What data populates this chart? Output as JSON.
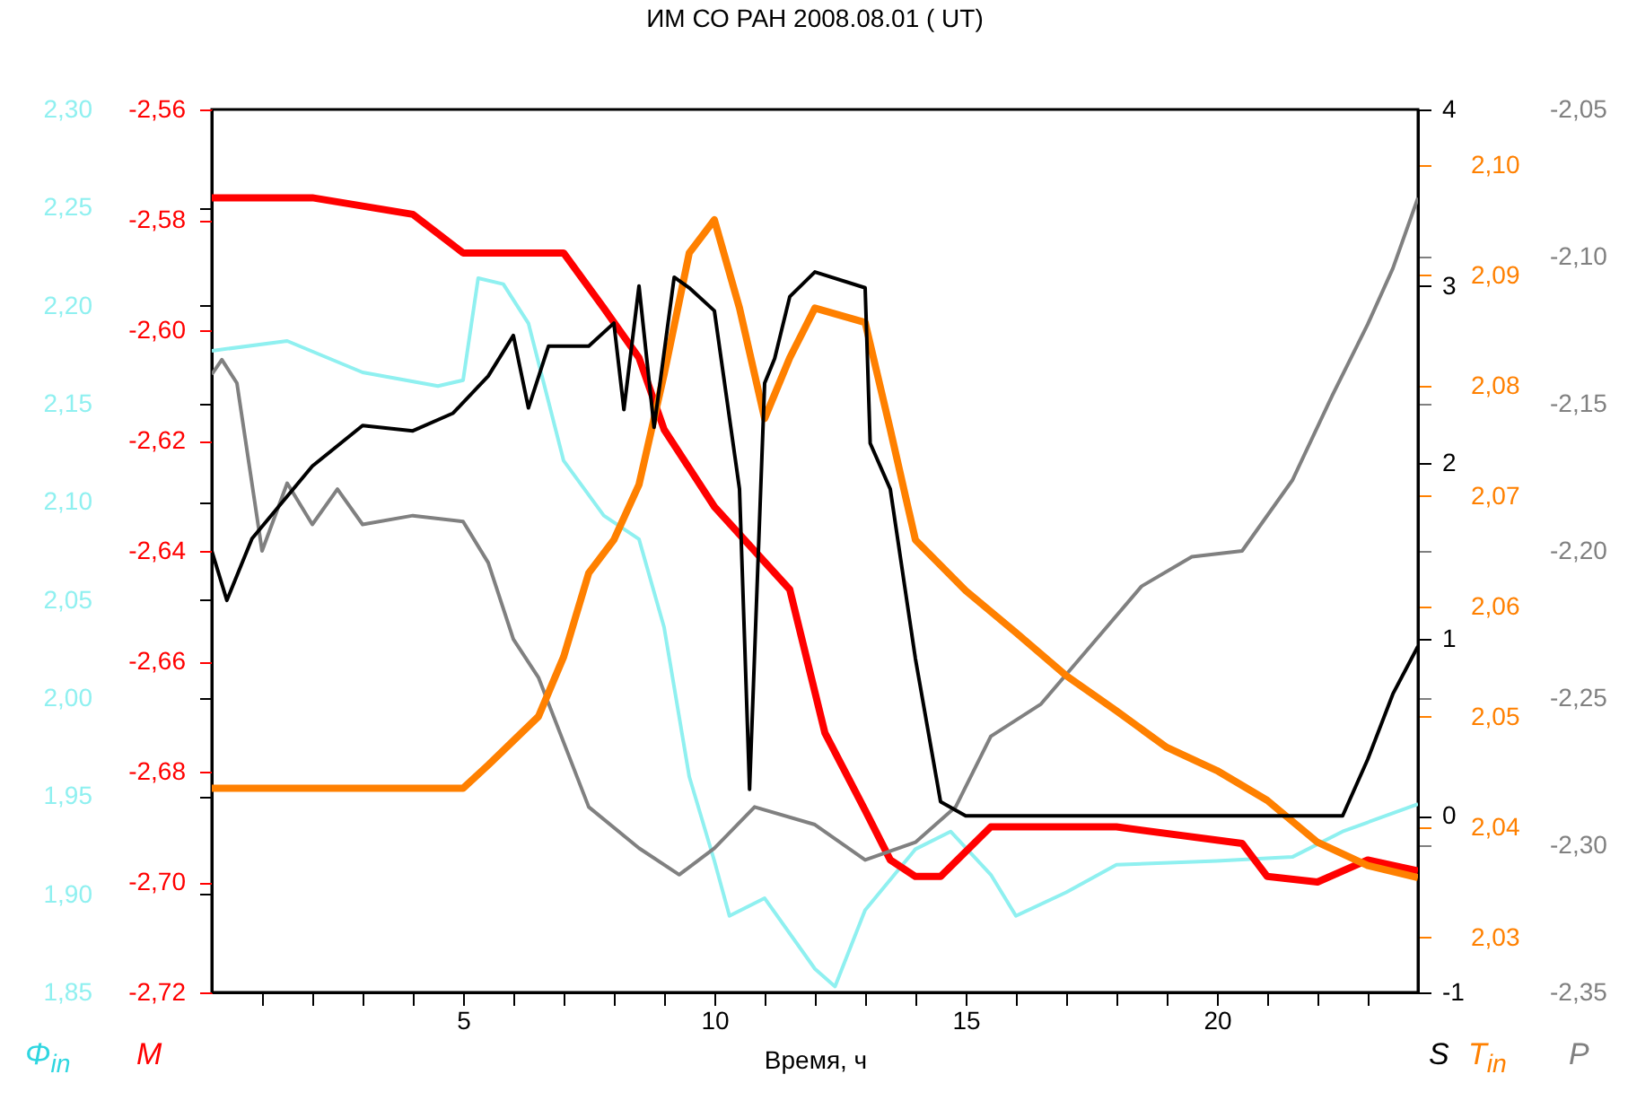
{
  "chart_data": [
    {
      "type": "line",
      "title": "ИМ СО РАН   2008.08.01   ( UT)",
      "xlabel": "Время, ч",
      "ylabel": "Φ$_{in}$",
      "y2label": "M",
      "xlim": [
        0,
        24
      ],
      "xticks": [
        {
          "value": 1,
          "label": null
        },
        {
          "value": 2,
          "label": null
        },
        {
          "value": 3,
          "label": null
        },
        {
          "value": 4,
          "label": null
        },
        5,
        {
          "value": 6,
          "label": null
        },
        {
          "value": 7,
          "label": null
        },
        {
          "value": 8,
          "label": null
        },
        {
          "value": 9,
          "label": null
        },
        10,
        {
          "value": 11,
          "label": null
        },
        {
          "value": 12,
          "label": null
        },
        {
          "value": 13,
          "label": null
        },
        {
          "value": 14,
          "label": null
        },
        15,
        {
          "value": 16,
          "label": null
        },
        {
          "value": 17,
          "label": null
        },
        {
          "value": 18,
          "label": null
        },
        {
          "value": 19,
          "label": null
        },
        20,
        {
          "value": 21,
          "label": null
        },
        {
          "value": 22,
          "label": null
        },
        {
          "value": 23,
          "label": null
        }
      ],
      "ylim": [
        1.85,
        2.3
      ],
      "yticks": [
        {
          "value": 1.85,
          "label": "1,85"
        },
        {
          "value": 1.9,
          "label": "1,90"
        },
        {
          "value": 1.95,
          "label": "1,95"
        },
        {
          "value": 2,
          "label": "2,00"
        },
        {
          "value": 2.05,
          "label": "2,05"
        },
        {
          "value": 2.1,
          "label": "2,10"
        },
        {
          "value": 2.15,
          "label": "2,15"
        },
        {
          "value": 2.2,
          "label": "2,20"
        },
        {
          "value": 2.25,
          "label": "2,25"
        },
        {
          "value": 2.3,
          "label": "2,30"
        }
      ],
      "y2lim": [
        -2.72,
        -2.56
      ],
      "y2ticks": [
        {
          "value": -2.72,
          "label": "-2,72"
        },
        {
          "value": -2.7,
          "label": "-2,70"
        },
        {
          "value": -2.68,
          "label": "-2,68"
        },
        {
          "value": -2.66,
          "label": "-2,66"
        },
        {
          "value": -2.64,
          "label": "-2,64"
        },
        {
          "value": -2.62,
          "label": "-2,62"
        },
        {
          "value": -2.6,
          "label": "-2,60"
        },
        {
          "value": -2.58,
          "label": "-2,58"
        },
        {
          "value": -2.56,
          "label": "-2,56"
        }
      ],
      "grid": false,
      "series": [
        {
          "axis": "y",
          "color": "#8ff0f0",
          "x": [
            0,
            1.5,
            3,
            4.5,
            5,
            5.3,
            5.8,
            6.3,
            7,
            7.8,
            8.5,
            9,
            9.5,
            10,
            10.3,
            11,
            12,
            12.4,
            13,
            14,
            14.7,
            15.5,
            16,
            17,
            18,
            20,
            21.5,
            22.5,
            24
          ],
          "values": [
            2.177,
            2.182,
            2.166,
            2.159,
            2.162,
            2.214,
            2.211,
            2.191,
            2.121,
            2.093,
            2.081,
            2.036,
            1.96,
            1.917,
            1.889,
            1.898,
            1.862,
            1.853,
            1.892,
            1.923,
            1.932,
            1.91,
            1.889,
            1.901,
            1.915,
            1.917,
            1.919,
            1.932,
            1.946
          ]
        },
        {
          "axis": "y2",
          "color": "#ff0000",
          "x": [
            0,
            2,
            4,
            5,
            7,
            7.8,
            8.5,
            9,
            10,
            10.8,
            11.5,
            12.2,
            13,
            13.5,
            14,
            14.5,
            15.5,
            18,
            20.5,
            21,
            22,
            23,
            24
          ],
          "values": [
            -2.576,
            -2.576,
            -2.579,
            -2.586,
            -2.586,
            -2.596,
            -2.605,
            -2.618,
            -2.632,
            -2.64,
            -2.647,
            -2.673,
            -2.687,
            -2.696,
            -2.699,
            -2.699,
            -2.69,
            -2.69,
            -2.693,
            -2.699,
            -2.7,
            -2.696,
            -2.698
          ]
        }
      ]
    },
    {
      "type": "line",
      "ylabel": "S",
      "y2label": "T$_{in}$",
      "y3label": "P",
      "tick_labels": "y",
      "xlim": [
        0,
        24
      ],
      "ylim": [
        -1,
        4
      ],
      "yticks": [
        -1,
        0,
        1,
        2,
        3,
        4
      ],
      "y2lim": [
        2.025,
        2.105
      ],
      "y2ticks": [
        {
          "value": 2.03,
          "label": "2,03"
        },
        {
          "value": 2.04,
          "label": "2,04"
        },
        {
          "value": 2.05,
          "label": "2,05"
        },
        {
          "value": 2.06,
          "label": "2,06"
        },
        {
          "value": 2.07,
          "label": "2,07"
        },
        {
          "value": 2.08,
          "label": "2,08"
        },
        {
          "value": 2.09,
          "label": "2,09"
        },
        {
          "value": 2.1,
          "label": "2,10"
        }
      ],
      "y3lim": [
        -2.35,
        -2.05
      ],
      "y3ticks": [
        {
          "value": -2.35,
          "label": "-2,35"
        },
        {
          "value": -2.3,
          "label": "-2,30"
        },
        {
          "value": -2.25,
          "label": "-2,25"
        },
        {
          "value": -2.2,
          "label": "-2,20"
        },
        {
          "value": -2.15,
          "label": "-2,15"
        },
        {
          "value": -2.1,
          "label": "-2,10"
        },
        {
          "value": -2.05,
          "label": "-2,05"
        }
      ],
      "grid": false,
      "series": [
        {
          "axis": "y3",
          "color": "#808080",
          "x": [
            0,
            0.2,
            0.5,
            1,
            1.5,
            2,
            2.5,
            3,
            4,
            5,
            5.5,
            6,
            6.5,
            7.5,
            8.5,
            9.3,
            10,
            10.8,
            12,
            13,
            14,
            14.8,
            15.5,
            16.5,
            17.5,
            18.5,
            19.5,
            20.5,
            21.5,
            22.3,
            23,
            23.5,
            24
          ],
          "values": [
            -2.14,
            -2.135,
            -2.143,
            -2.2,
            -2.177,
            -2.191,
            -2.179,
            -2.191,
            -2.188,
            -2.19,
            -2.204,
            -2.23,
            -2.243,
            -2.287,
            -2.301,
            -2.31,
            -2.301,
            -2.287,
            -2.293,
            -2.305,
            -2.299,
            -2.287,
            -2.263,
            -2.252,
            -2.232,
            -2.212,
            -2.202,
            -2.2,
            -2.176,
            -2.147,
            -2.123,
            -2.104,
            -2.08
          ]
        },
        {
          "axis": "y2",
          "color": "#ff8000",
          "x": [
            0,
            5,
            5.5,
            6.5,
            7,
            7.5,
            8,
            8.5,
            9,
            9.5,
            10,
            10.5,
            11,
            11.5,
            12,
            13,
            13.5,
            14,
            15,
            16,
            17,
            18,
            19,
            20,
            21,
            22,
            23,
            24
          ],
          "values": [
            2.0435,
            2.0435,
            2.0456,
            2.05,
            2.0554,
            2.063,
            2.066,
            2.071,
            2.081,
            2.092,
            2.095,
            2.087,
            2.077,
            2.0825,
            2.087,
            2.0857,
            2.076,
            2.066,
            2.0614,
            2.0576,
            2.0537,
            2.0505,
            2.0472,
            2.0451,
            2.0424,
            2.0386,
            2.0365,
            2.0354
          ]
        },
        {
          "axis": "y",
          "color": "#000000",
          "x": [
            0,
            0.3,
            0.8,
            2,
            3,
            4,
            4.8,
            5.5,
            6,
            6.3,
            6.7,
            7.5,
            8,
            8.2,
            8.5,
            8.8,
            9.2,
            9.5,
            10,
            10.5,
            10.7,
            11,
            11.2,
            11.5,
            12,
            13,
            13.1,
            13.5,
            14,
            14.5,
            15,
            20.5,
            22.5,
            23,
            23.5,
            24
          ],
          "values": [
            1.5,
            1.22,
            1.57,
            1.98,
            2.21,
            2.18,
            2.28,
            2.49,
            2.72,
            2.31,
            2.66,
            2.66,
            2.79,
            2.3,
            3,
            2.2,
            3.05,
            2.99,
            2.86,
            1.85,
            0.15,
            2.45,
            2.59,
            2.94,
            3.08,
            2.99,
            2.11,
            1.85,
            0.89,
            0.08,
            0,
            0,
            0,
            0.32,
            0.69,
            0.96
          ]
        }
      ]
    }
  ]
}
